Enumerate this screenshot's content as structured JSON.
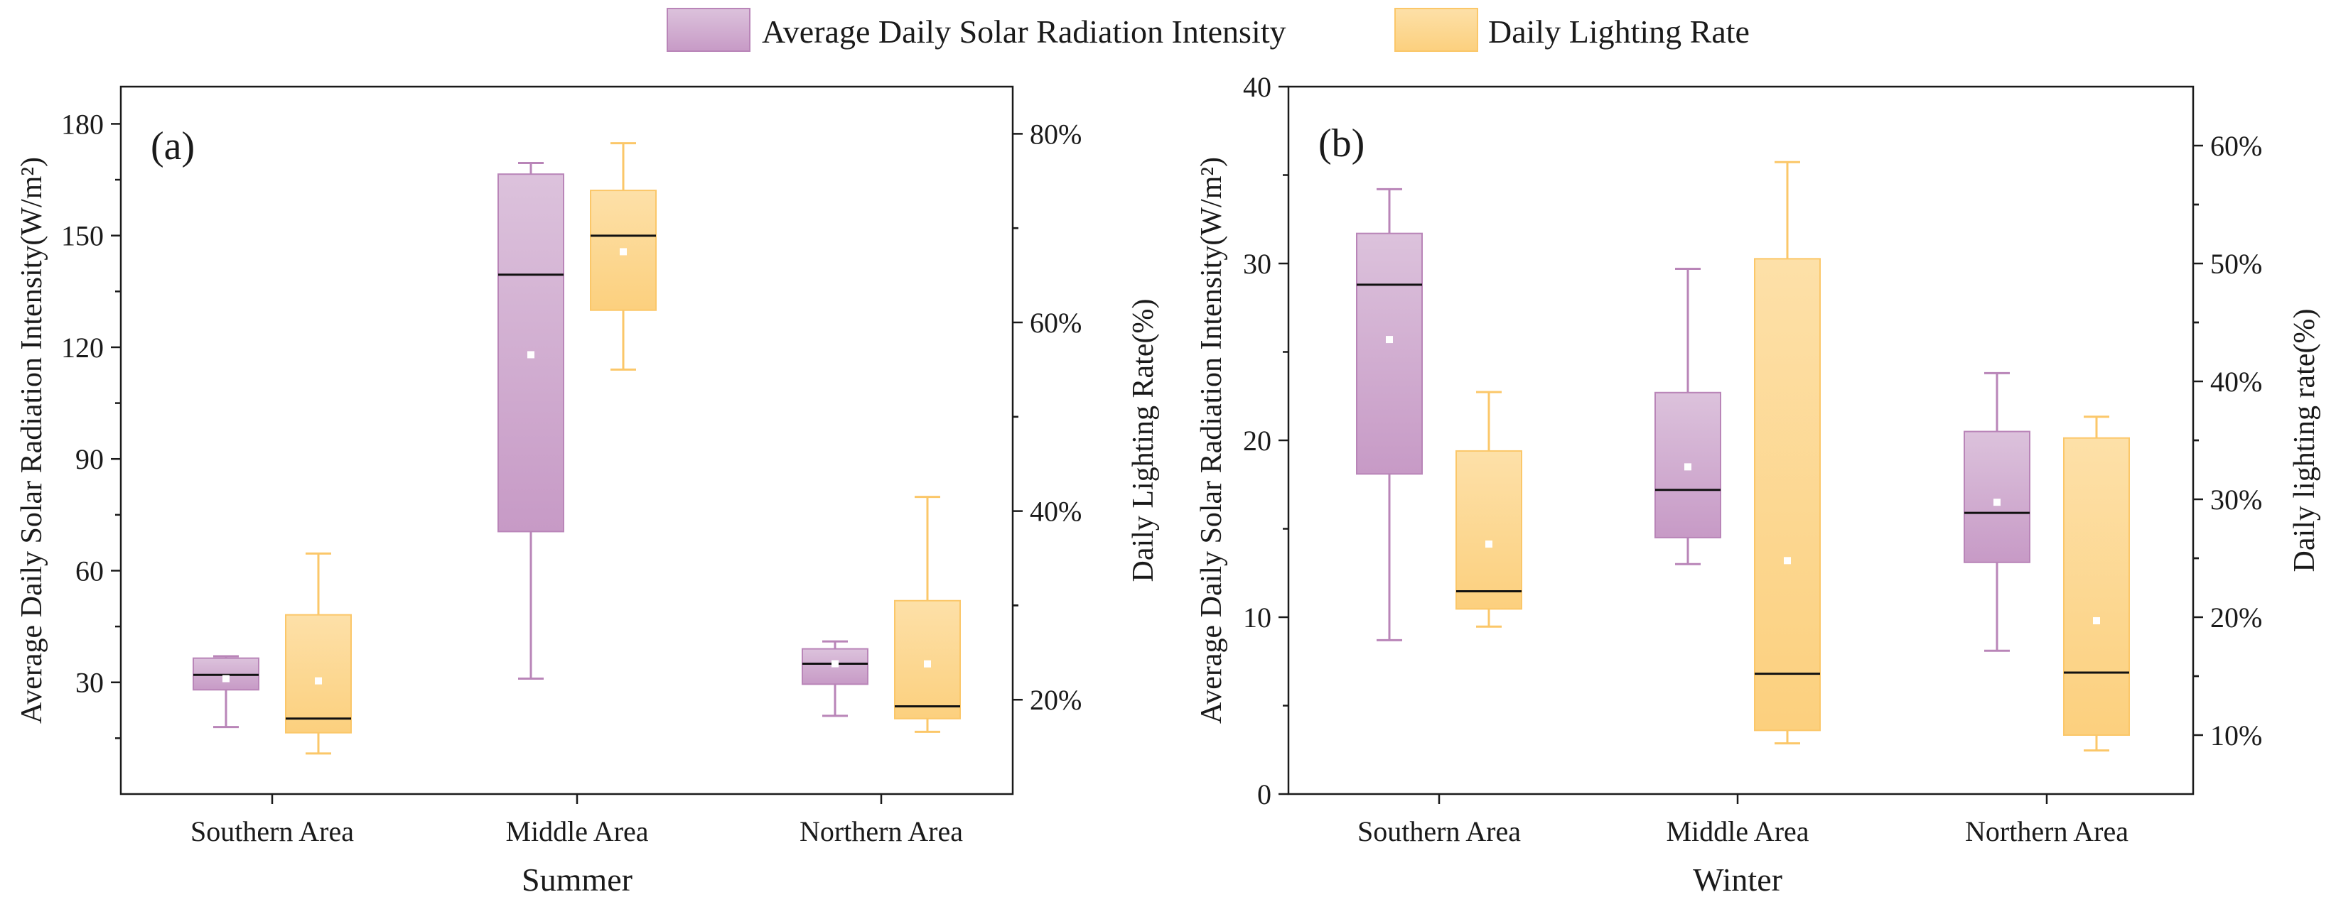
{
  "colors": {
    "purple": "#b985b8",
    "yellow": "#fbc769"
  },
  "legend": [
    {
      "label": "Average Daily Solar Radiation Intensity",
      "color": "#b985b8"
    },
    {
      "label": "Daily Lighting Rate",
      "color": "#fbc769"
    }
  ],
  "chart_data": [
    {
      "type": "box",
      "panel_label": "(a)",
      "xlabel": "Summer",
      "categories": [
        "Southern Area",
        "Middle Area",
        "Northern Area"
      ],
      "left_axis": {
        "label": "Average Daily Solar Radiation Intensity(W/m²)",
        "range": [
          0,
          190
        ],
        "ticks": [
          30,
          60,
          90,
          120,
          150,
          180
        ],
        "tick_labels": [
          "30",
          "60",
          "90",
          "120",
          "150",
          "180"
        ]
      },
      "right_axis": {
        "label": "Daily Lighting Rate(%)",
        "range": [
          0.1,
          0.85
        ],
        "ticks": [
          0.2,
          0.4,
          0.6,
          0.8
        ],
        "tick_labels": [
          "20%",
          "40%",
          "60%",
          "80%"
        ]
      },
      "series": [
        {
          "name": "Average Daily Solar Radiation Intensity",
          "axis": "left",
          "boxes": [
            {
              "min": 18,
              "q1": 28,
              "median": 32,
              "q3": 36.5,
              "max": 37,
              "mean": 31
            },
            {
              "min": 31,
              "q1": 70.5,
              "median": 139.5,
              "q3": 166.5,
              "max": 169.5,
              "mean": 118
            },
            {
              "min": 21,
              "q1": 29.5,
              "median": 35,
              "q3": 39,
              "max": 41,
              "mean": 35
            }
          ]
        },
        {
          "name": "Daily Lighting Rate",
          "axis": "right",
          "boxes": [
            {
              "min": 0.143,
              "q1": 0.165,
              "median": 0.18,
              "q3": 0.29,
              "max": 0.355,
              "mean": 0.22
            },
            {
              "min": 0.55,
              "q1": 0.613,
              "median": 0.692,
              "q3": 0.74,
              "max": 0.79,
              "mean": 0.675
            },
            {
              "min": 0.166,
              "q1": 0.18,
              "median": 0.193,
              "q3": 0.305,
              "max": 0.415,
              "mean": 0.238
            }
          ]
        }
      ]
    },
    {
      "type": "box",
      "panel_label": "(b)",
      "xlabel": "Winter",
      "categories": [
        "Southern Area",
        "Middle Area",
        "Northern Area"
      ],
      "left_axis": {
        "label": "Average Daily Solar Radiation Intensity(W/m²)",
        "range": [
          0,
          40
        ],
        "ticks": [
          0,
          10,
          20,
          30,
          40
        ],
        "tick_labels": [
          "0",
          "10",
          "20",
          "30",
          "40"
        ]
      },
      "right_axis": {
        "label": "Daily lighting rate(%)",
        "range": [
          0.05,
          0.65
        ],
        "ticks": [
          0.1,
          0.2,
          0.3,
          0.4,
          0.5,
          0.6
        ],
        "tick_labels": [
          "10%",
          "20%",
          "30%",
          "40%",
          "50%",
          "60%"
        ]
      },
      "series": [
        {
          "name": "Average Daily Solar Radiation Intensity",
          "axis": "left",
          "boxes": [
            {
              "min": 8.7,
              "q1": 18.1,
              "median": 28.8,
              "q3": 31.7,
              "max": 34.2,
              "mean": 25.7
            },
            {
              "min": 13,
              "q1": 14.5,
              "median": 17.2,
              "q3": 22.7,
              "max": 29.7,
              "mean": 18.5
            },
            {
              "min": 8.1,
              "q1": 13.1,
              "median": 15.9,
              "q3": 20.5,
              "max": 23.8,
              "mean": 16.5
            }
          ]
        },
        {
          "name": "Daily Lighting Rate",
          "axis": "right",
          "boxes": [
            {
              "min": 0.192,
              "q1": 0.207,
              "median": 0.222,
              "q3": 0.341,
              "max": 0.391,
              "mean": 0.262
            },
            {
              "min": 0.093,
              "q1": 0.104,
              "median": 0.152,
              "q3": 0.504,
              "max": 0.586,
              "mean": 0.248
            },
            {
              "min": 0.087,
              "q1": 0.1,
              "median": 0.153,
              "q3": 0.352,
              "max": 0.37,
              "mean": 0.197
            }
          ]
        }
      ]
    }
  ]
}
